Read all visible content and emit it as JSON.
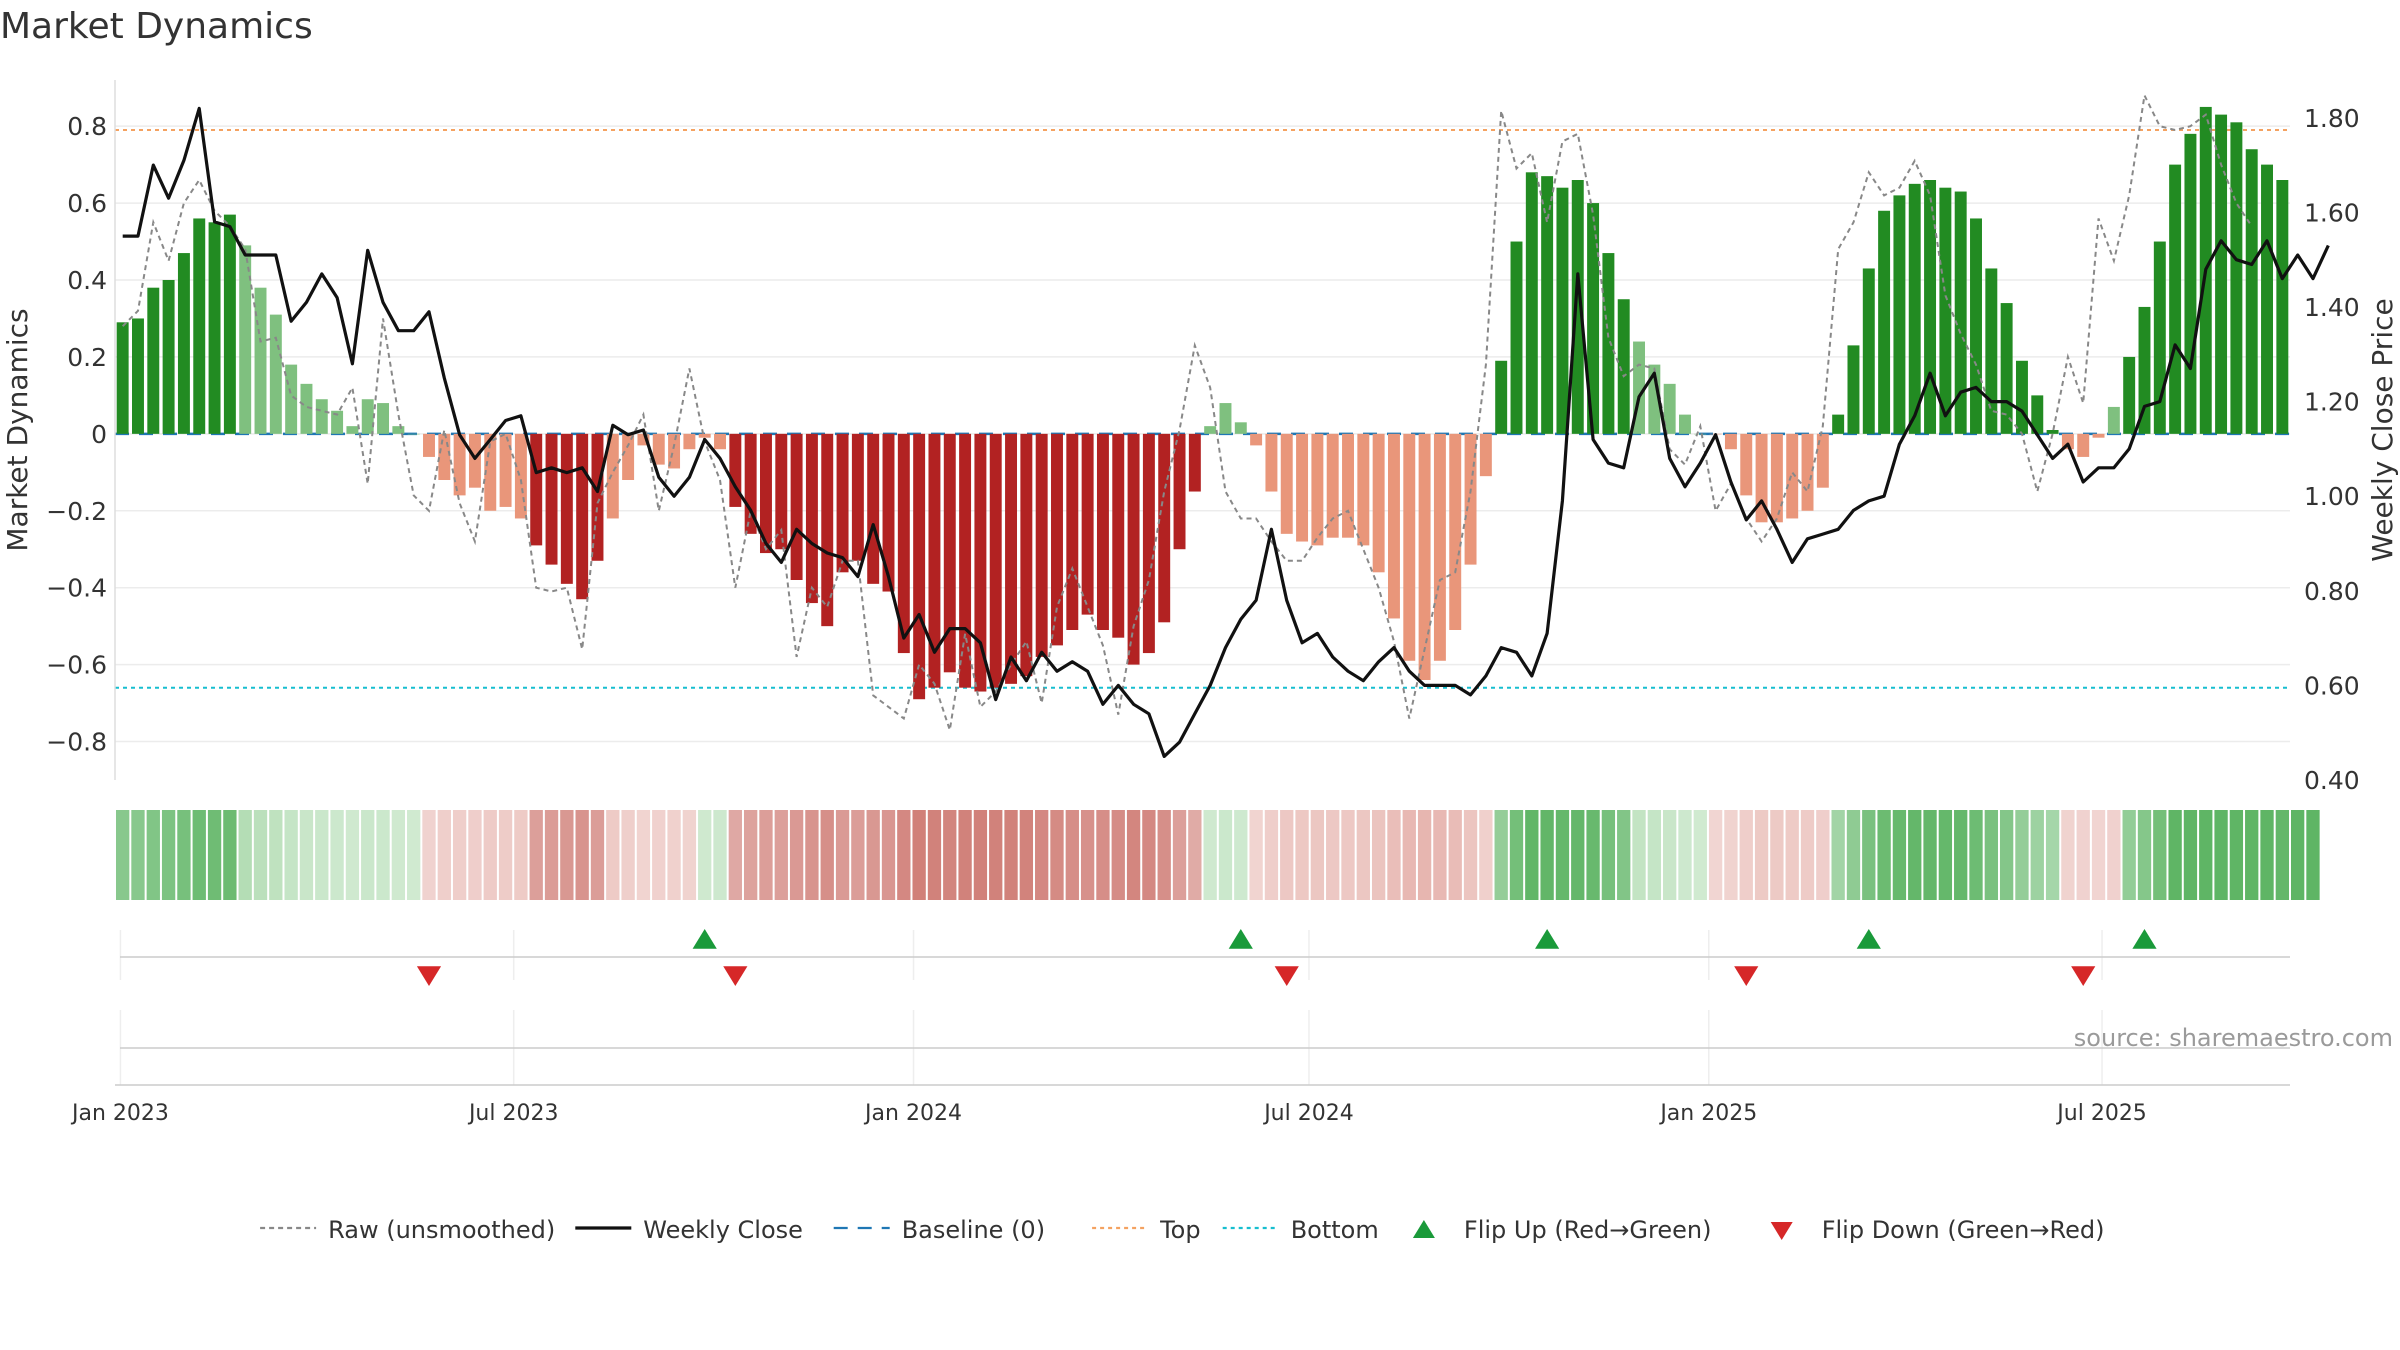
{
  "chart_data": {
    "type": "bar",
    "title": "Market Dynamics",
    "ylabel": "Market Dynamics",
    "ylabel_right": "Weekly Close Price",
    "ylim": [
      -0.9,
      0.92
    ],
    "ylim_right": [
      0.4,
      1.88
    ],
    "yticks": [
      0.8,
      0.6,
      0.4,
      0.2,
      0,
      -0.2,
      -0.4,
      -0.6,
      -0.8
    ],
    "ytick_labels": [
      "0.8",
      "0.6",
      "0.4",
      "0.2",
      "0",
      "−0.2",
      "−0.4",
      "−0.6",
      "−0.8"
    ],
    "yticks_right": [
      1.8,
      1.6,
      1.4,
      1.2,
      1.0,
      0.8,
      0.6,
      0.4
    ],
    "ytick_right_labels": [
      "1.80",
      "1.60",
      "1.40",
      "1.20",
      "1.00",
      "0.80",
      "0.60",
      "0.40"
    ],
    "x_start": "2023-01-02",
    "x_end": "2025-09-22",
    "xticks": [
      {
        "date": "2023-01-01",
        "label": "Jan 2023"
      },
      {
        "date": "2023-07-01",
        "label": "Jul 2023"
      },
      {
        "date": "2024-01-01",
        "label": "Jan 2024"
      },
      {
        "date": "2024-07-01",
        "label": "Jul 2024"
      },
      {
        "date": "2025-01-01",
        "label": "Jan 2025"
      },
      {
        "date": "2025-07-01",
        "label": "Jul 2025"
      }
    ],
    "top_level": 0.79,
    "bottom_level": -0.66,
    "series": [
      {
        "name": "Market Dynamics (smoothed)",
        "values": [
          0.29,
          0.3,
          0.38,
          0.4,
          0.47,
          0.56,
          0.55,
          0.57,
          0.49,
          0.38,
          0.31,
          0.18,
          0.13,
          0.09,
          0.06,
          0.02,
          0.09,
          0.08,
          0.02,
          0,
          -0.06,
          -0.12,
          -0.16,
          -0.14,
          -0.2,
          -0.19,
          -0.22,
          -0.29,
          -0.34,
          -0.39,
          -0.43,
          -0.33,
          -0.22,
          -0.12,
          -0.03,
          -0.08,
          -0.09,
          -0.04,
          -0.01,
          -0.04,
          -0.19,
          -0.26,
          -0.31,
          -0.3,
          -0.38,
          -0.44,
          -0.5,
          -0.36,
          -0.33,
          -0.39,
          -0.41,
          -0.57,
          -0.69,
          -0.66,
          -0.62,
          -0.66,
          -0.67,
          -0.66,
          -0.65,
          -0.63,
          -0.58,
          -0.55,
          -0.51,
          -0.47,
          -0.51,
          -0.53,
          -0.6,
          -0.57,
          -0.49,
          -0.3,
          -0.15,
          0.02,
          0.08,
          0.03,
          -0.03,
          -0.15,
          -0.26,
          -0.28,
          -0.29,
          -0.27,
          -0.27,
          -0.29,
          -0.36,
          -0.48,
          -0.59,
          -0.64,
          -0.59,
          -0.51,
          -0.34,
          -0.11,
          0.19,
          0.5,
          0.68,
          0.67,
          0.64,
          0.66,
          0.6,
          0.47,
          0.35,
          0.24,
          0.18,
          0.13,
          0.05,
          0,
          0,
          -0.04,
          -0.16,
          -0.23,
          -0.23,
          -0.22,
          -0.2,
          -0.14,
          0.05,
          0.23,
          0.43,
          0.58,
          0.62,
          0.65,
          0.66,
          0.64,
          0.63,
          0.56,
          0.43,
          0.34,
          0.19,
          0.1,
          0.01,
          -0.04,
          -0.06,
          -0.01,
          0.07,
          0.2,
          0.33,
          0.5,
          0.7,
          0.78,
          0.85,
          0.83,
          0.81,
          0.74,
          0.7,
          0.66
        ]
      },
      {
        "name": "Raw (unsmoothed)",
        "values": [
          0.28,
          0.32,
          0.55,
          0.45,
          0.6,
          0.66,
          0.58,
          0.54,
          0.48,
          0.24,
          0.25,
          0.1,
          0.07,
          0.06,
          0.05,
          0.12,
          -0.13,
          0.3,
          0.05,
          -0.16,
          -0.2,
          0.01,
          -0.18,
          -0.28,
          -0.02,
          0.0,
          -0.12,
          -0.4,
          -0.41,
          -0.4,
          -0.56,
          -0.18,
          -0.1,
          -0.03,
          0.05,
          -0.2,
          -0.03,
          0.17,
          -0.02,
          -0.12,
          -0.4,
          -0.2,
          -0.3,
          -0.25,
          -0.58,
          -0.4,
          -0.45,
          -0.33,
          -0.33,
          -0.68,
          -0.71,
          -0.74,
          -0.6,
          -0.65,
          -0.77,
          -0.52,
          -0.71,
          -0.67,
          -0.6,
          -0.54,
          -0.7,
          -0.45,
          -0.35,
          -0.45,
          -0.55,
          -0.73,
          -0.5,
          -0.38,
          -0.15,
          0.01,
          0.23,
          0.12,
          -0.15,
          -0.22,
          -0.22,
          -0.28,
          -0.33,
          -0.33,
          -0.27,
          -0.22,
          -0.2,
          -0.3,
          -0.4,
          -0.54,
          -0.74,
          -0.56,
          -0.38,
          -0.36,
          -0.15,
          0.18,
          0.84,
          0.69,
          0.73,
          0.55,
          0.76,
          0.78,
          0.57,
          0.25,
          0.15,
          0.18,
          0.17,
          -0.04,
          -0.08,
          0.02,
          -0.2,
          -0.13,
          -0.22,
          -0.28,
          -0.22,
          -0.1,
          -0.15,
          0.02,
          0.48,
          0.55,
          0.68,
          0.62,
          0.64,
          0.71,
          0.62,
          0.36,
          0.26,
          0.18,
          0.06,
          0.05,
          0.0,
          -0.15,
          0.0,
          0.2,
          0.08,
          0.56,
          0.45,
          0.62,
          0.88,
          0.8,
          0.79,
          0.8,
          0.83,
          0.7,
          0.6,
          0.54
        ]
      },
      {
        "name": "Weekly Close",
        "values": [
          1.55,
          1.55,
          1.7,
          1.63,
          1.71,
          1.82,
          1.58,
          1.57,
          1.51,
          1.51,
          1.51,
          1.37,
          1.41,
          1.47,
          1.42,
          1.28,
          1.52,
          1.41,
          1.35,
          1.35,
          1.39,
          1.25,
          1.13,
          1.08,
          1.12,
          1.16,
          1.17,
          1.05,
          1.06,
          1.05,
          1.06,
          1.01,
          1.15,
          1.13,
          1.14,
          1.04,
          1.0,
          1.04,
          1.12,
          1.08,
          1.02,
          0.97,
          0.9,
          0.86,
          0.93,
          0.9,
          0.88,
          0.87,
          0.83,
          0.94,
          0.83,
          0.7,
          0.75,
          0.67,
          0.72,
          0.72,
          0.69,
          0.57,
          0.66,
          0.61,
          0.67,
          0.63,
          0.65,
          0.63,
          0.56,
          0.6,
          0.56,
          0.54,
          0.45,
          0.48,
          0.54,
          0.6,
          0.68,
          0.74,
          0.78,
          0.93,
          0.78,
          0.69,
          0.71,
          0.66,
          0.63,
          0.61,
          0.65,
          0.68,
          0.63,
          0.6,
          0.6,
          0.6,
          0.58,
          0.62,
          0.68,
          0.67,
          0.62,
          0.71,
          0.99,
          1.47,
          1.12,
          1.07,
          1.06,
          1.21,
          1.26,
          1.08,
          1.02,
          1.07,
          1.13,
          1.03,
          0.95,
          0.99,
          0.93,
          0.86,
          0.91,
          0.92,
          0.93,
          0.97,
          0.99,
          1.0,
          1.11,
          1.17,
          1.26,
          1.17,
          1.22,
          1.23,
          1.2,
          1.2,
          1.18,
          1.13,
          1.08,
          1.11,
          1.03,
          1.06,
          1.06,
          1.1,
          1.19,
          1.2,
          1.32,
          1.27,
          1.48,
          1.54,
          1.5,
          1.49,
          1.54,
          1.46,
          1.51,
          1.46,
          1.53
        ]
      }
    ],
    "states": [
      "ng",
      "ng",
      "ng",
      "ng",
      "ng",
      "ng",
      "ng",
      "ng",
      "fg",
      "fg",
      "fg",
      "fg",
      "fg",
      "fg",
      "fg",
      "fg",
      "fg",
      "fg",
      "fg",
      "fg",
      "fr",
      "fr",
      "fr",
      "fr",
      "fr",
      "fr",
      "fr",
      "nr",
      "nr",
      "nr",
      "nr",
      "nr",
      "fr",
      "fr",
      "fr",
      "fr",
      "fr",
      "fr",
      "fg",
      "fg",
      "nr",
      "nr",
      "nr",
      "nr",
      "nr",
      "nr",
      "nr",
      "nr",
      "nr",
      "nr",
      "nr",
      "nr",
      "nr",
      "nr",
      "nr",
      "nr",
      "nr",
      "nr",
      "nr",
      "nr",
      "nr",
      "nr",
      "nr",
      "nr",
      "nr",
      "nr",
      "nr",
      "nr",
      "nr",
      "nr",
      "nr",
      "fg",
      "fg",
      "fg",
      "fr",
      "fr",
      "fr",
      "fr",
      "fr",
      "fr",
      "fr",
      "fr",
      "fr",
      "fr",
      "fr",
      "fr",
      "fr",
      "fr",
      "fr",
      "fr",
      "ng",
      "ng",
      "ng",
      "ng",
      "ng",
      "ng",
      "ng",
      "ng",
      "ng",
      "fg",
      "fg",
      "fg",
      "fg",
      "fg",
      "fr",
      "fr",
      "fr",
      "fr",
      "fr",
      "fr",
      "fr",
      "fr",
      "ng",
      "ng",
      "ng",
      "ng",
      "ng",
      "ng",
      "ng",
      "ng",
      "ng",
      "ng",
      "ng",
      "ng",
      "ng",
      "ng",
      "ng",
      "fr",
      "fr",
      "fr",
      "fr",
      "ng",
      "ng",
      "ng",
      "ng",
      "ng",
      "ng",
      "ng",
      "ng",
      "ng",
      "ng",
      "ng",
      "ng",
      "ng"
    ],
    "flip_up_weeks": [
      38,
      73,
      93,
      114,
      132
    ],
    "flip_down_weeks": [
      20,
      40,
      76,
      106,
      128
    ],
    "legend": [
      {
        "label": "Raw (unsmoothed)",
        "kind": "dashed",
        "color": "#888888"
      },
      {
        "label": "Weekly Close",
        "kind": "solid",
        "color": "#111111"
      },
      {
        "label": "Baseline (0)",
        "kind": "longdash",
        "color": "#1f77b4"
      },
      {
        "label": "Top",
        "kind": "dotted",
        "color": "#f4a261"
      },
      {
        "label": "Bottom",
        "kind": "dotted",
        "color": "#17becf"
      },
      {
        "label": "Flip Up (Red→Green)",
        "kind": "tri-up",
        "color": "#1a9a3a"
      },
      {
        "label": "Flip Down (Green→Red)",
        "kind": "tri-down",
        "color": "#d62728"
      }
    ],
    "legend_position": "bottom",
    "grid": true,
    "colors": {
      "strong_green": "#228b22",
      "fading_green": "#7fc07f",
      "strong_red": "#b22222",
      "fading_red": "#e9967a",
      "raw_line": "#888888",
      "close_line": "#111111",
      "baseline": "#1f77b4",
      "top": "#f4a261",
      "bottom": "#17becf",
      "flip_up": "#1a9a3a",
      "flip_down": "#d62728"
    }
  },
  "source_text": "source: sharemaestro.com"
}
